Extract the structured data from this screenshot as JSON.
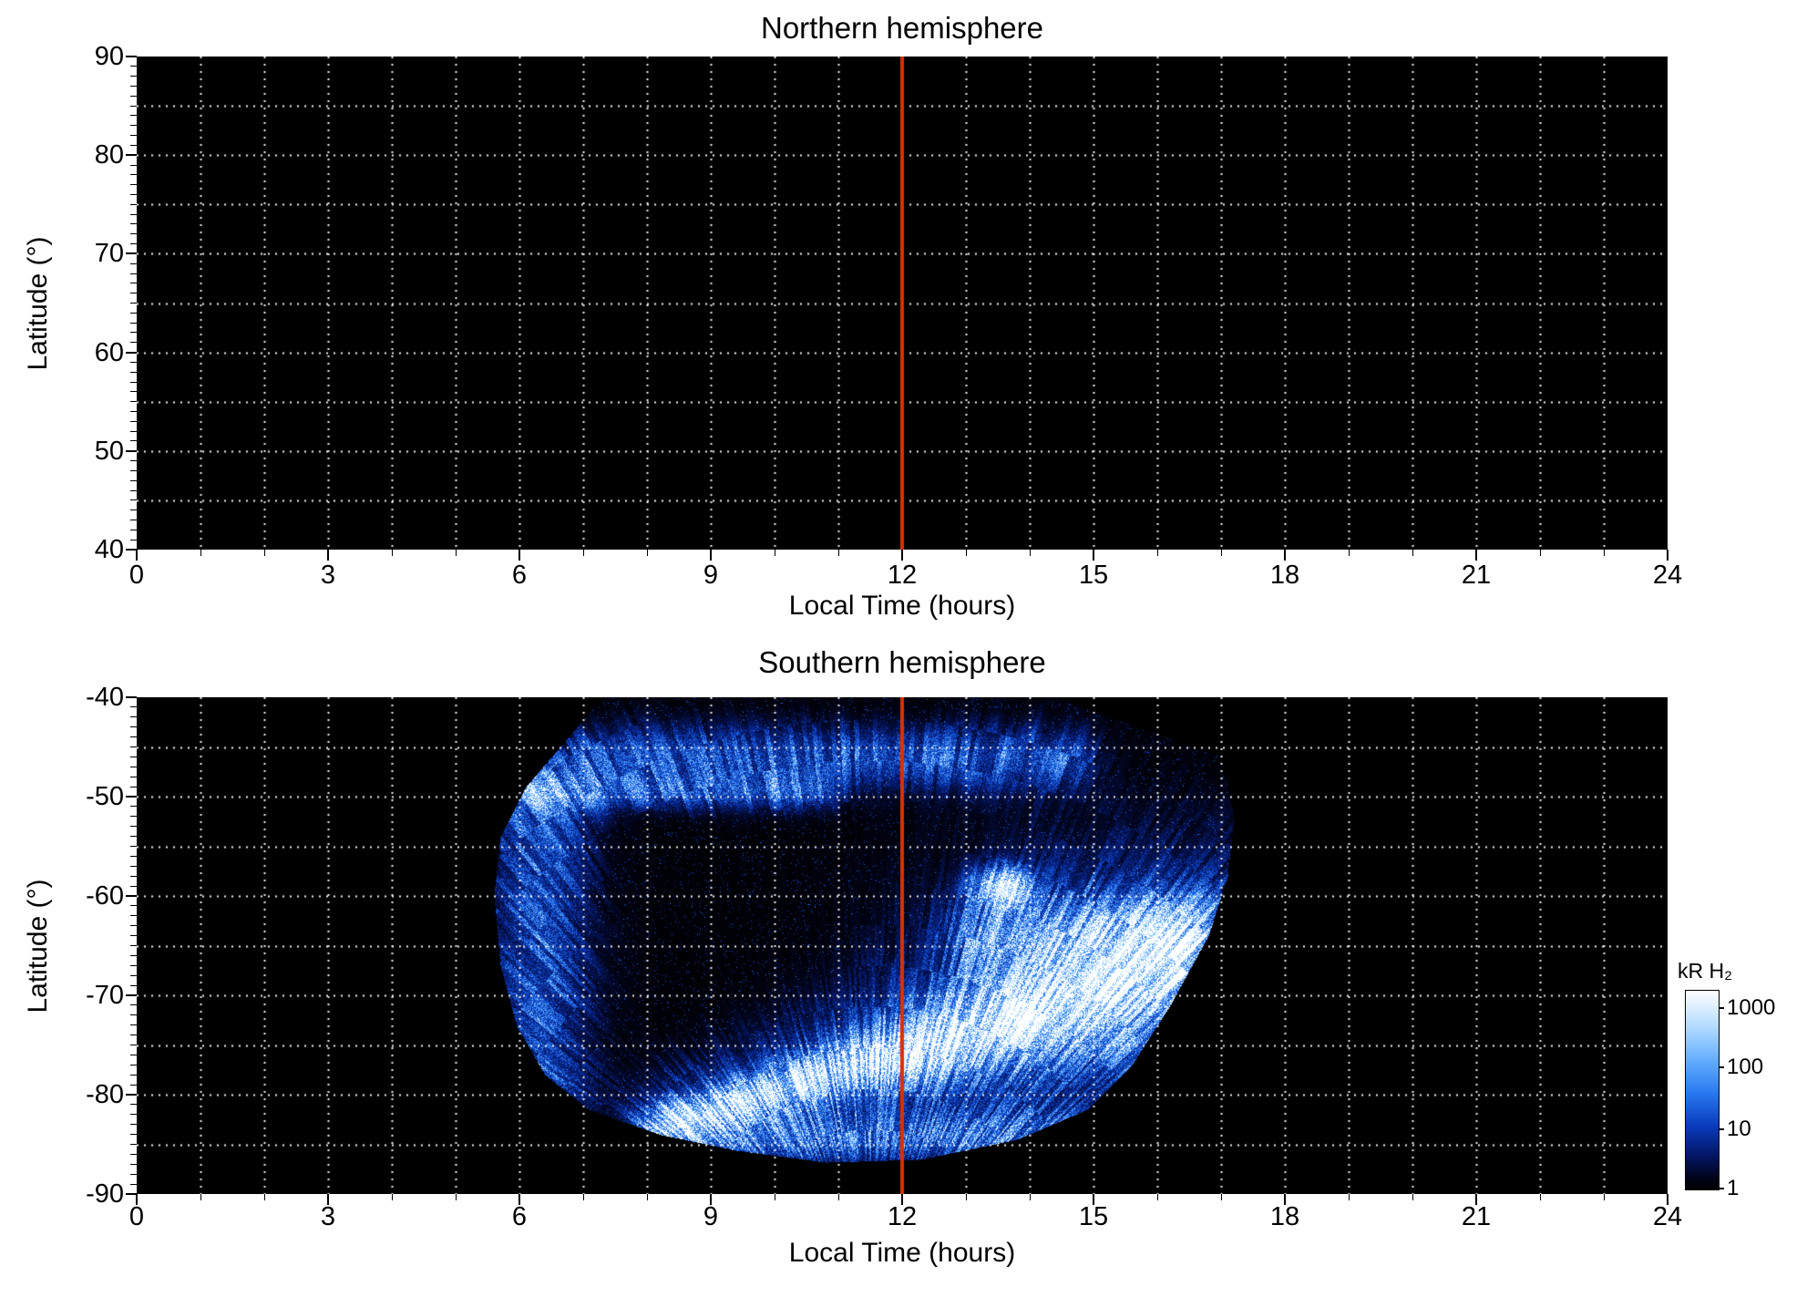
{
  "figure": {
    "background": "#ffffff",
    "panel_background": "#000000",
    "grid_color": "#ffffff",
    "text_color": "#000000",
    "noon_line_color": "#d83200"
  },
  "chart_data": [
    {
      "type": "heatmap",
      "panel": "north",
      "title": "Northern hemisphere",
      "xlabel": "Local Time (hours)",
      "ylabel": "Latitude (°)",
      "xlim": [
        0,
        24
      ],
      "ylim": [
        40,
        90
      ],
      "xticks": [
        0,
        3,
        6,
        9,
        12,
        15,
        18,
        21,
        24
      ],
      "yticks": [
        90,
        80,
        70,
        60,
        50,
        40
      ],
      "grid_x_step": 1,
      "grid_y_step": 5,
      "noon_line_hours": 12,
      "emission": {
        "detected": false,
        "note": "no emission displayed; panel entirely black with dotted grid"
      }
    },
    {
      "type": "heatmap",
      "panel": "south",
      "title": "Southern hemisphere",
      "xlabel": "Local Time (hours)",
      "ylabel": "Latitude (°)",
      "xlim": [
        0,
        24
      ],
      "ylim": [
        -90,
        -40
      ],
      "xticks": [
        0,
        3,
        6,
        9,
        12,
        15,
        18,
        21,
        24
      ],
      "yticks": [
        -40,
        -50,
        -60,
        -70,
        -80,
        -90
      ],
      "grid_x_step": 1,
      "grid_y_step": 5,
      "noon_line_hours": 12,
      "emission": {
        "detected": true,
        "units": "kR H2",
        "coverage_polygon_lt_lat": [
          [
            7.3,
            -40
          ],
          [
            14.4,
            -40
          ],
          [
            17.0,
            -46
          ],
          [
            17.2,
            -52
          ],
          [
            17.1,
            -58
          ],
          [
            16.8,
            -64
          ],
          [
            16.2,
            -71
          ],
          [
            15.6,
            -77
          ],
          [
            14.9,
            -81.5
          ],
          [
            13.8,
            -84.5
          ],
          [
            12.3,
            -86.5
          ],
          [
            10.8,
            -86.8
          ],
          [
            9.4,
            -85.6
          ],
          [
            8.2,
            -84
          ],
          [
            7.1,
            -81.5
          ],
          [
            6.4,
            -78
          ],
          [
            5.95,
            -73
          ],
          [
            5.7,
            -67
          ],
          [
            5.6,
            -60
          ],
          [
            5.7,
            -54
          ],
          [
            6.1,
            -49
          ],
          [
            6.7,
            -44.5
          ]
        ],
        "main_oval_arc_lt_lat_widthdeg_amp": [
          [
            8.4,
            -82.5,
            1.3,
            0.9
          ],
          [
            9.6,
            -80.3,
            1.5,
            0.95
          ],
          [
            11.0,
            -77.5,
            1.8,
            1.0
          ],
          [
            12.4,
            -75.0,
            2.4,
            1.1
          ],
          [
            13.8,
            -72.0,
            3.2,
            1.2
          ],
          [
            15.0,
            -69.5,
            3.6,
            1.25
          ],
          [
            16.1,
            -66.5,
            3.0,
            1.2
          ]
        ],
        "bright_spot": {
          "lt": 13.55,
          "lat": -59,
          "sigma_lt": 0.28,
          "sigma_lat": 1.3,
          "amp": 1.5
        },
        "diffuse_bands": [
          {
            "name": "subauroral-band",
            "lat_center": -46.0,
            "lat_sigma": 2.2,
            "lt_min": 7.2,
            "lt_max": 14.5,
            "amp": 0.5
          },
          {
            "name": "dawn-band",
            "lat_center": -49.5,
            "lat_sigma": 1.3,
            "lt_min": 6.2,
            "lt_max": 10.5,
            "amp": 0.45
          },
          {
            "name": "dusk-fill",
            "lat_center": -63.5,
            "lat_sigma": 2.6,
            "lt_min": 13.2,
            "lt_max": 16.6,
            "amp": 0.5
          },
          {
            "name": "bottom-glow",
            "lat_center": -84.3,
            "lat_sigma": 1.8,
            "lt_min": 8.0,
            "lt_max": 14.5,
            "amp": 0.5
          }
        ],
        "left_edge_glow": {
          "lt_center": 6.3,
          "lt_sigma": 0.55,
          "lat_min": -81,
          "lat_max": -48,
          "amp": 0.5
        }
      }
    }
  ],
  "colorbar": {
    "label": "kR H₂",
    "tick_labels": [
      "1000",
      "100",
      "10",
      "1"
    ],
    "scale": "log",
    "colormap_stops": [
      "#000002",
      "#02051e",
      "#05196e",
      "#0a3cbe",
      "#2878f0",
      "#64afff",
      "#b4dcff",
      "#ffffff"
    ]
  }
}
